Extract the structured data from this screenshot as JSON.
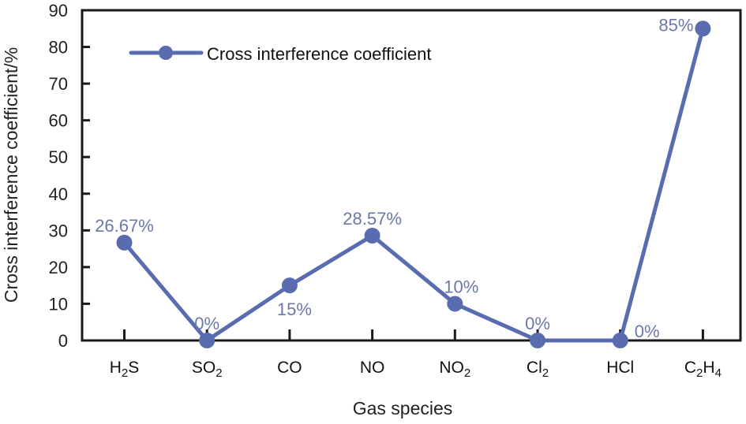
{
  "chart_data": {
    "type": "line",
    "title": "",
    "xlabel": "Gas species",
    "ylabel": "Cross interference coefficient/%",
    "categories": [
      {
        "base": "H",
        "sub": "2",
        "rest": "S"
      },
      {
        "base": "SO",
        "sub": "2",
        "rest": ""
      },
      {
        "base": "CO",
        "sub": "",
        "rest": ""
      },
      {
        "base": "NO",
        "sub": "",
        "rest": ""
      },
      {
        "base": "NO",
        "sub": "2",
        "rest": ""
      },
      {
        "base": "Cl",
        "sub": "2",
        "rest": ""
      },
      {
        "base": "HCl",
        "sub": "",
        "rest": ""
      },
      {
        "base": "C",
        "sub": "2",
        "rest": "H",
        "sub2": "4"
      }
    ],
    "category_names": [
      "H2S",
      "SO2",
      "CO",
      "NO",
      "NO2",
      "Cl2",
      "HCl",
      "C2H4"
    ],
    "series": [
      {
        "name": "Cross interference coefficient",
        "values": [
          26.67,
          0,
          15,
          28.57,
          10,
          0,
          0,
          85
        ],
        "color": "#5a6cb0"
      }
    ],
    "data_labels": [
      "26.67%",
      "0%",
      "15%",
      "28.57%",
      "10%",
      "0%",
      "0%",
      "85%"
    ],
    "ylim": [
      0,
      90
    ],
    "yticks": [
      0,
      10,
      20,
      30,
      40,
      50,
      60,
      70,
      80,
      90
    ],
    "legend": "top-left",
    "grid": false,
    "label_color": "#6b78a8"
  }
}
